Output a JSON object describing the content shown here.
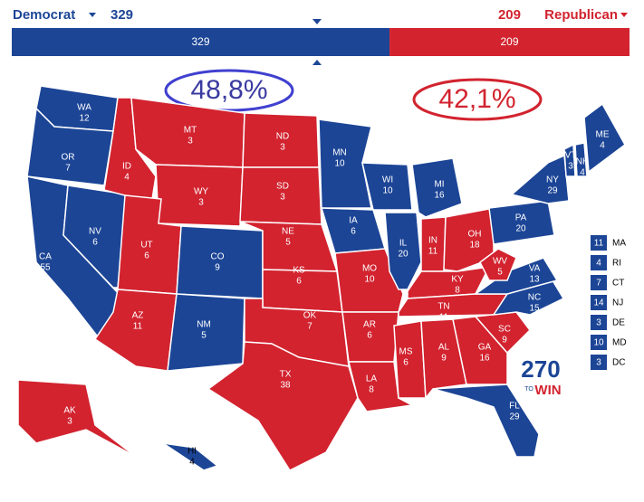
{
  "header": {
    "democrat": {
      "label": "Democrat",
      "votes": 329,
      "color": "#1c4596"
    },
    "republican": {
      "label": "Republican",
      "votes": 209,
      "color": "#d2232f"
    }
  },
  "annotations": {
    "democrat_share": "48,8%",
    "republican_share": "42,1%"
  },
  "logo": {
    "number": "270",
    "small": "TO",
    "word": "WIN"
  },
  "states": [
    {
      "abbr": "WA",
      "votes": 12,
      "color": "#1c4596"
    },
    {
      "abbr": "OR",
      "votes": 7,
      "color": "#1c4596"
    },
    {
      "abbr": "CA",
      "votes": 55,
      "color": "#1c4596"
    },
    {
      "abbr": "NV",
      "votes": 6,
      "color": "#1c4596"
    },
    {
      "abbr": "ID",
      "votes": 4,
      "color": "#d2232f"
    },
    {
      "abbr": "MT",
      "votes": 3,
      "color": "#d2232f"
    },
    {
      "abbr": "WY",
      "votes": 3,
      "color": "#d2232f"
    },
    {
      "abbr": "UT",
      "votes": 6,
      "color": "#d2232f"
    },
    {
      "abbr": "AZ",
      "votes": 11,
      "color": "#d2232f"
    },
    {
      "abbr": "CO",
      "votes": 9,
      "color": "#1c4596"
    },
    {
      "abbr": "NM",
      "votes": 5,
      "color": "#1c4596"
    },
    {
      "abbr": "ND",
      "votes": 3,
      "color": "#d2232f"
    },
    {
      "abbr": "SD",
      "votes": 3,
      "color": "#d2232f"
    },
    {
      "abbr": "NE",
      "votes": 5,
      "color": "#d2232f"
    },
    {
      "abbr": "KS",
      "votes": 6,
      "color": "#d2232f"
    },
    {
      "abbr": "OK",
      "votes": 7,
      "color": "#d2232f"
    },
    {
      "abbr": "TX",
      "votes": 38,
      "color": "#d2232f"
    },
    {
      "abbr": "MN",
      "votes": 10,
      "color": "#1c4596"
    },
    {
      "abbr": "IA",
      "votes": 6,
      "color": "#1c4596"
    },
    {
      "abbr": "MO",
      "votes": 10,
      "color": "#d2232f"
    },
    {
      "abbr": "AR",
      "votes": 6,
      "color": "#d2232f"
    },
    {
      "abbr": "LA",
      "votes": 8,
      "color": "#d2232f"
    },
    {
      "abbr": "WI",
      "votes": 10,
      "color": "#1c4596"
    },
    {
      "abbr": "IL",
      "votes": 20,
      "color": "#1c4596"
    },
    {
      "abbr": "MI",
      "votes": 16,
      "color": "#1c4596"
    },
    {
      "abbr": "IN",
      "votes": 11,
      "color": "#d2232f"
    },
    {
      "abbr": "OH",
      "votes": 18,
      "color": "#d2232f"
    },
    {
      "abbr": "KY",
      "votes": 8,
      "color": "#d2232f"
    },
    {
      "abbr": "TN",
      "votes": 11,
      "color": "#d2232f"
    },
    {
      "abbr": "MS",
      "votes": 6,
      "color": "#d2232f"
    },
    {
      "abbr": "AL",
      "votes": 9,
      "color": "#d2232f"
    },
    {
      "abbr": "GA",
      "votes": 16,
      "color": "#d2232f"
    },
    {
      "abbr": "FL",
      "votes": 29,
      "color": "#1c4596"
    },
    {
      "abbr": "SC",
      "votes": 9,
      "color": "#d2232f"
    },
    {
      "abbr": "NC",
      "votes": 15,
      "color": "#1c4596"
    },
    {
      "abbr": "VA",
      "votes": 13,
      "color": "#1c4596"
    },
    {
      "abbr": "WV",
      "votes": 5,
      "color": "#d2232f"
    },
    {
      "abbr": "PA",
      "votes": 20,
      "color": "#1c4596"
    },
    {
      "abbr": "NY",
      "votes": 29,
      "color": "#1c4596"
    },
    {
      "abbr": "VT",
      "votes": 3,
      "color": "#1c4596"
    },
    {
      "abbr": "NH",
      "votes": 4,
      "color": "#1c4596"
    },
    {
      "abbr": "ME",
      "votes": 4,
      "color": "#1c4596"
    },
    {
      "abbr": "AK",
      "votes": 3,
      "color": "#d2232f"
    },
    {
      "abbr": "HI",
      "votes": 4,
      "color": "#1c4596"
    }
  ],
  "small_states": [
    {
      "abbr": "MA",
      "votes": 11,
      "color": "#1c4596"
    },
    {
      "abbr": "RI",
      "votes": 4,
      "color": "#1c4596"
    },
    {
      "abbr": "CT",
      "votes": 7,
      "color": "#1c4596"
    },
    {
      "abbr": "NJ",
      "votes": 14,
      "color": "#1c4596"
    },
    {
      "abbr": "DE",
      "votes": 3,
      "color": "#1c4596"
    },
    {
      "abbr": "MD",
      "votes": 10,
      "color": "#1c4596"
    },
    {
      "abbr": "DC",
      "votes": 3,
      "color": "#1c4596"
    }
  ]
}
